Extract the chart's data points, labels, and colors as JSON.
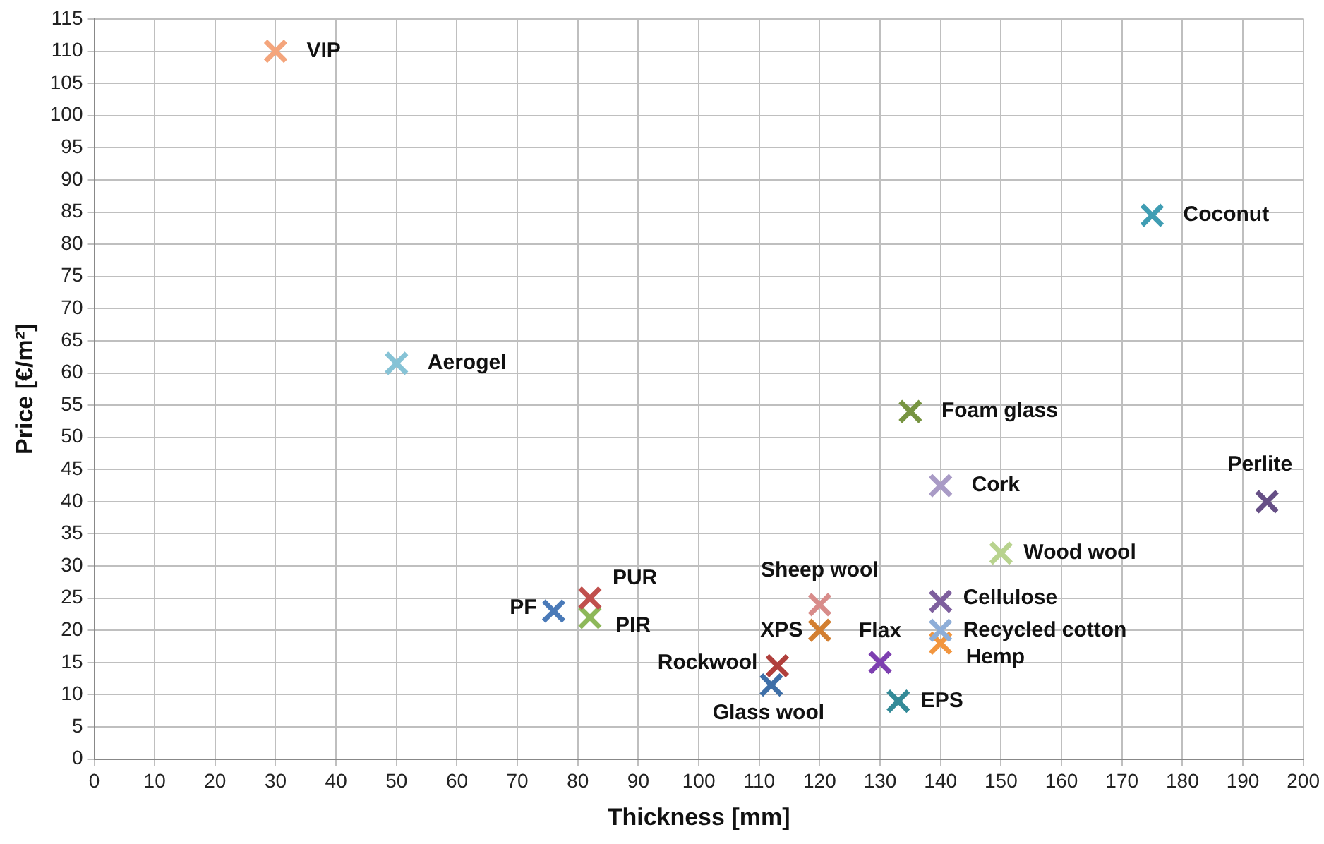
{
  "chart_data": {
    "type": "scatter",
    "xlabel": "Thickness [mm]",
    "ylabel": "Price [€/m²]",
    "xlim": [
      0,
      200
    ],
    "xticks": [
      0,
      10,
      20,
      30,
      40,
      50,
      60,
      70,
      80,
      90,
      100,
      110,
      120,
      130,
      140,
      150,
      160,
      170,
      180,
      190,
      200
    ],
    "ylim": [
      0,
      115
    ],
    "yticks": [
      0,
      5,
      10,
      15,
      20,
      25,
      30,
      35,
      40,
      45,
      50,
      55,
      60,
      65,
      70,
      75,
      80,
      85,
      90,
      95,
      100,
      105,
      110,
      115
    ],
    "grid": true,
    "legend": false,
    "marker": "cross",
    "series": [
      {
        "name": "VIP",
        "color": "#f4a57c",
        "x": [
          30
        ],
        "values": [
          110
        ]
      },
      {
        "name": "Aerogel",
        "color": "#86c3d6",
        "x": [
          50
        ],
        "values": [
          61.5
        ]
      },
      {
        "name": "Coconut",
        "color": "#3f9db3",
        "x": [
          175
        ],
        "values": [
          84.5
        ]
      },
      {
        "name": "Foam glass",
        "color": "#779441",
        "x": [
          135
        ],
        "values": [
          54
        ]
      },
      {
        "name": "Cork",
        "color": "#a99bc6",
        "x": [
          140
        ],
        "values": [
          42.5
        ]
      },
      {
        "name": "Perlite",
        "color": "#664f86",
        "x": [
          194
        ],
        "values": [
          40
        ]
      },
      {
        "name": "Wood wool",
        "color": "#b8d38e",
        "x": [
          150
        ],
        "values": [
          32
        ]
      },
      {
        "name": "Cellulose",
        "color": "#7e5f9e",
        "x": [
          140
        ],
        "values": [
          24.5
        ]
      },
      {
        "name": "Recycled cotton",
        "color": "#8eaed8",
        "x": [
          140
        ],
        "values": [
          20
        ]
      },
      {
        "name": "Hemp",
        "color": "#f2963f",
        "x": [
          140
        ],
        "values": [
          18
        ]
      },
      {
        "name": "Sheep wool",
        "color": "#d88c8a",
        "x": [
          120
        ],
        "values": [
          24
        ]
      },
      {
        "name": "XPS",
        "color": "#d37f31",
        "x": [
          120
        ],
        "values": [
          20
        ]
      },
      {
        "name": "Flax",
        "color": "#7d3fb0",
        "x": [
          130
        ],
        "values": [
          15
        ]
      },
      {
        "name": "EPS",
        "color": "#338a97",
        "x": [
          133
        ],
        "values": [
          9
        ]
      },
      {
        "name": "Rockwool",
        "color": "#b03f3c",
        "x": [
          113
        ],
        "values": [
          14.5
        ]
      },
      {
        "name": "Glass wool",
        "color": "#3e6fa8",
        "x": [
          112
        ],
        "values": [
          11.5
        ]
      },
      {
        "name": "PF",
        "color": "#4a7ab8",
        "x": [
          76
        ],
        "values": [
          23
        ]
      },
      {
        "name": "PUR",
        "color": "#c0504d",
        "x": [
          82
        ],
        "values": [
          25
        ]
      },
      {
        "name": "PIR",
        "color": "#8db859",
        "x": [
          82
        ],
        "values": [
          22
        ]
      }
    ]
  }
}
